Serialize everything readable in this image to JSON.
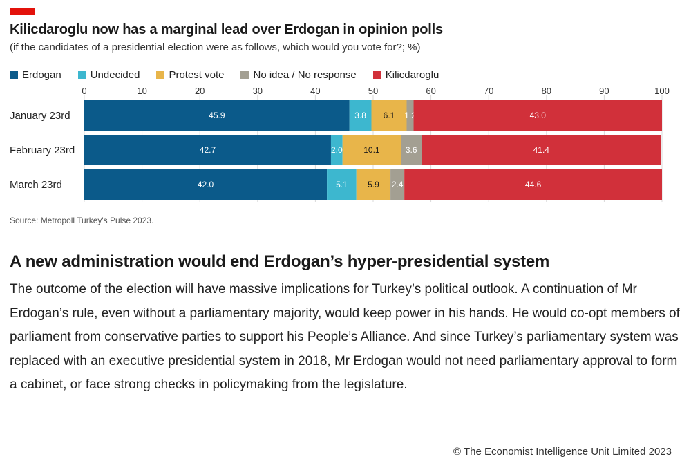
{
  "chart_data": {
    "type": "bar",
    "orientation": "horizontal",
    "stacked": true,
    "title": "Kilicdaroglu now has a marginal lead over Erdogan in opinion polls",
    "subtitle": "(if the candidates of a presidential election were as follows, which would you vote for?; %)",
    "categories": [
      "January 23rd",
      "February 23rd",
      "March 23rd"
    ],
    "series": [
      {
        "name": "Erdogan",
        "color": "#0b5a8a",
        "values": [
          45.9,
          42.7,
          42.0
        ]
      },
      {
        "name": "Undecided",
        "color": "#3db7cf",
        "values": [
          3.8,
          2.0,
          5.1
        ]
      },
      {
        "name": "Protest vote",
        "color": "#e8b54a",
        "values": [
          6.1,
          10.1,
          5.9
        ]
      },
      {
        "name": "No idea / No response",
        "color": "#a39f92",
        "values": [
          1.2,
          3.6,
          2.4
        ]
      },
      {
        "name": "Kilicdaroglu",
        "color": "#d1303a",
        "values": [
          43.0,
          41.4,
          44.6
        ]
      }
    ],
    "value_labels": [
      [
        "45.9",
        "3.8",
        "6.1",
        "1.2",
        "43.0"
      ],
      [
        "42.7",
        "2.0",
        "10.1",
        "3.6",
        "41.4"
      ],
      [
        "42.0",
        "5.1",
        "5.9",
        "2.4",
        "44.6"
      ]
    ],
    "xlim": [
      0,
      100
    ],
    "xticks": [
      "0",
      "10",
      "20",
      "30",
      "40",
      "50",
      "60",
      "70",
      "80",
      "90",
      "100"
    ],
    "xaxis_position": "top",
    "legend_position": "top",
    "grid": true,
    "source": "Source: Metropoll Turkey's Pulse 2023."
  },
  "article": {
    "heading": "A new administration would end Erdogan’s hyper-presidential system",
    "body": "The outcome of the election will have massive implications for Turkey’s political outlook. A continuation of Mr Erdogan’s rule, even without a parliamentary majority, would keep power in his hands. He would co-opt members of parliament from conservative parties to support his People’s Alliance. And since Turkey’s parliamentary system was replaced with an executive presidential system in 2018, Mr Erdogan would not need parliamentary approval to form a cabinet, or face strong checks in policymaking from the legislature."
  },
  "footer": {
    "copyright": "© The Economist Intelligence Unit Limited 2023"
  },
  "colors": {
    "brand_red": "#e3120b"
  }
}
